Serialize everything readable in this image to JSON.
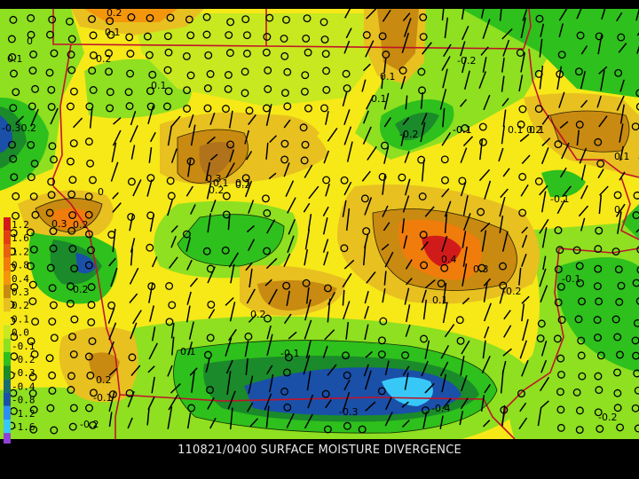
{
  "caption": "110821/0400 SURFACE MOISTURE DIVERGENCE",
  "legend": [
    {
      "label": "1.2",
      "color": "#d11b1b"
    },
    {
      "label": "1.6",
      "color": "#e04010"
    },
    {
      "label": "1.2",
      "color": "#e86010"
    },
    {
      "label": "0.8",
      "color": "#f07c0c"
    },
    {
      "label": "0.4",
      "color": "#f4960c"
    },
    {
      "label": "0.3",
      "color": "#c88a10"
    },
    {
      "label": "0.2",
      "color": "#e8c020"
    },
    {
      "label": "0.1",
      "color": "#f7e818"
    },
    {
      "label": "0.0",
      "color": "#c8e820"
    },
    {
      "label": "-0.1",
      "color": "#8ee020"
    },
    {
      "label": "-0.2",
      "color": "#2ec01c"
    },
    {
      "label": "-0.3",
      "color": "#1a8a2a"
    },
    {
      "label": "-0.4",
      "color": "#1a6e6e"
    },
    {
      "label": "-0.8",
      "color": "#1a50a8"
    },
    {
      "label": "-1.2",
      "color": "#2c8ef0"
    },
    {
      "label": "-1.6",
      "color": "#38c8f8"
    },
    {
      "label": "",
      "color": "#9040d8"
    }
  ],
  "contour_labels": [
    "0.2",
    "0.1",
    "0",
    "0.1",
    "0.2",
    "0.1",
    "-0.2",
    "0.1",
    "-0.1",
    "0.1",
    "0.2",
    "0.1",
    "-0.2",
    "-0.1",
    "0",
    "0.1",
    "0.2",
    "-0.30.2",
    "0.3",
    "0.2",
    "0.1",
    "-0.1",
    "0",
    "0.3",
    "0.2",
    "-0.2",
    "0.4",
    "0.3",
    "0.1",
    "-0.2",
    "-0.1",
    "0.2",
    "0.1",
    "0.2",
    "-0.1",
    "-0.1",
    "-0.3",
    "-0.4",
    "-0.2",
    "-0.2",
    "0.1",
    "0.1"
  ],
  "colors": {
    "background": "#000000",
    "field_base": "#f7e818",
    "border_lines": "#c0142a",
    "contours": "#000000"
  }
}
